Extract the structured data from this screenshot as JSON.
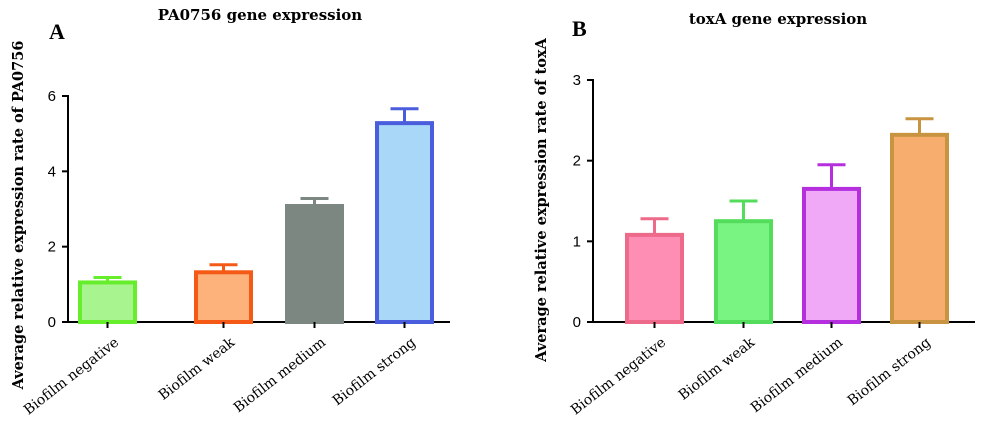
{
  "chart_data": [
    {
      "type": "bar",
      "panel_letter": "A",
      "title": "PA0756 gene expression",
      "ylabel": "Average relative expression rate of  PA0756",
      "xlabel": "",
      "ylim": [
        0,
        6
      ],
      "yticks": [
        "0",
        "2",
        "4",
        "6"
      ],
      "grid": false,
      "categories": [
        "Biofilm negative",
        "Biofilm weak",
        "Biofilm medium",
        "Biofilm strong"
      ],
      "values": [
        1.05,
        1.32,
        3.08,
        5.28
      ],
      "errors": [
        0.13,
        0.2,
        0.2,
        0.38
      ],
      "fill_colors": [
        "#a8f58f",
        "#fdb27c",
        "#7d8781",
        "#a8d7f7"
      ],
      "edge_colors": [
        "#66ee2c",
        "#f45a16",
        "#7d8781",
        "#4a5ddd"
      ]
    },
    {
      "type": "bar",
      "panel_letter": "B",
      "title": "toxA gene expression",
      "ylabel": "Average relative expression rate of toxA",
      "xlabel": "",
      "ylim": [
        0,
        3
      ],
      "yticks": [
        "0",
        "1",
        "2",
        "3"
      ],
      "grid": false,
      "categories": [
        "Biofilm negative",
        "Biofilm weak",
        "Biofilm medium",
        "Biofilm strong"
      ],
      "values": [
        1.08,
        1.25,
        1.65,
        2.32
      ],
      "errors": [
        0.2,
        0.25,
        0.3,
        0.2
      ],
      "fill_colors": [
        "#ff8eb4",
        "#79f482",
        "#f0a9f6",
        "#f6ad6e"
      ],
      "edge_colors": [
        "#ed6a8a",
        "#54dc5c",
        "#b52fdf",
        "#c99441"
      ]
    }
  ]
}
